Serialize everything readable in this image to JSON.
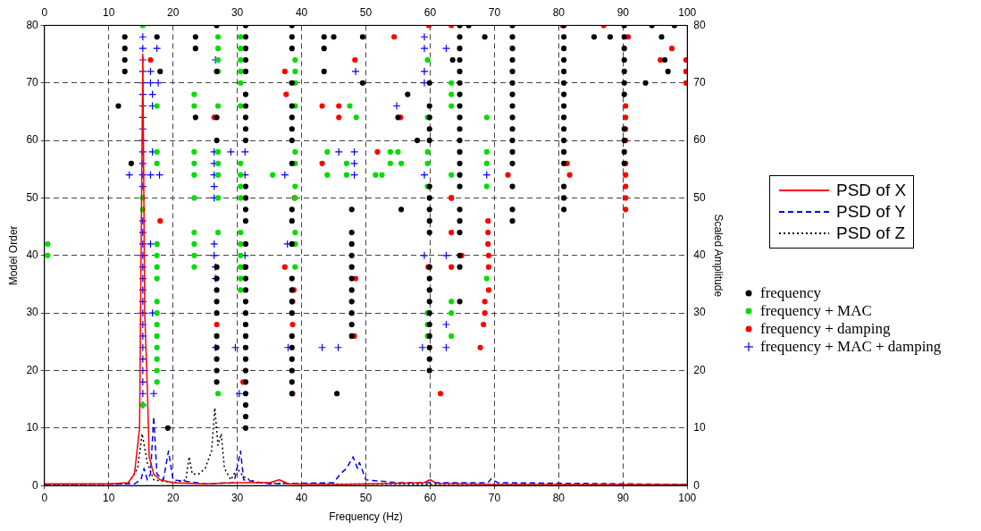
{
  "chart_data": {
    "type": "scatter",
    "xlabel": "Frequency (Hz)",
    "ylabel": "Model Order",
    "y2label": "Scaled Amplitude",
    "xlim": [
      0,
      100
    ],
    "xticks": [
      0,
      10,
      20,
      30,
      40,
      50,
      60,
      70,
      80,
      90,
      100
    ],
    "x2lim": [
      0,
      100
    ],
    "x2ticks": [
      0,
      10,
      20,
      30,
      40,
      50,
      60,
      70,
      80,
      90,
      100
    ],
    "ylim": [
      0,
      80
    ],
    "yticks": [
      0,
      10,
      20,
      30,
      40,
      50,
      60,
      70,
      80
    ],
    "y2lim": [
      0,
      80
    ],
    "y2ticks": [
      0,
      10,
      20,
      30,
      40,
      50,
      60,
      70,
      80
    ],
    "grid": true,
    "legend": "right",
    "series": [
      {
        "name": "PSD of X",
        "type": "line",
        "axis": "y2",
        "color": "#ff0000",
        "line_style": "solid",
        "marker": "none",
        "x": [
          0,
          10,
          13,
          14,
          14.8,
          15.3,
          15.6,
          16,
          16.3,
          17,
          18,
          20,
          25,
          30,
          35,
          36.5,
          38,
          45,
          59,
          60,
          61,
          70,
          80,
          100
        ],
        "values": [
          0.3,
          0.3,
          0.5,
          2,
          10,
          75,
          30,
          17,
          5,
          2,
          1,
          0.5,
          0.3,
          0.5,
          0.5,
          1,
          0.3,
          0.2,
          0.5,
          1,
          0.4,
          0.2,
          0.2,
          0.2
        ]
      },
      {
        "name": "PSD of Y",
        "type": "line",
        "axis": "y2",
        "color": "#0000ff",
        "line_style": "dashed",
        "marker": "none",
        "x": [
          0,
          14,
          15,
          15.5,
          16,
          16.5,
          17,
          17.5,
          18.5,
          19.3,
          20,
          25,
          29.5,
          30.5,
          31,
          35,
          45,
          46,
          47,
          48,
          48.7,
          49,
          50,
          55,
          69,
          69.5,
          70.5,
          81,
          100
        ],
        "values": [
          0.2,
          0.3,
          1,
          3,
          1,
          2,
          12,
          2,
          1,
          6,
          1,
          0.3,
          0.5,
          6,
          1,
          0.3,
          0.5,
          2,
          3,
          5,
          3,
          4,
          1,
          0.5,
          0.5,
          1.2,
          0.5,
          0.4,
          0.2
        ]
      },
      {
        "name": "PSD of Z",
        "type": "line",
        "axis": "y2",
        "color": "#000000",
        "line_style": "dotted",
        "marker": "none",
        "x": [
          0,
          13,
          14.5,
          15.2,
          16,
          17,
          20,
          22,
          22.5,
          23,
          24,
          25,
          26,
          26.5,
          27,
          27.5,
          28,
          29,
          30,
          31,
          33,
          40,
          100
        ],
        "values": [
          0.1,
          0.3,
          3,
          9,
          4,
          1,
          0.5,
          1,
          5,
          2,
          2,
          3,
          6,
          13.5,
          7,
          9,
          3,
          1,
          3,
          1.5,
          0.5,
          0.3,
          0.1
        ]
      },
      {
        "name": "frequency",
        "type": "scatter",
        "color": "#000000",
        "marker": "circle",
        "x": [
          31.3,
          31.3,
          31.3,
          31.3,
          31.3,
          31.3,
          31.3,
          31.3,
          31.3,
          31.3,
          31.3,
          31.3,
          31.3,
          31.3,
          31.3,
          31.3,
          31.3,
          31.3,
          31.3,
          31.3,
          31.3,
          31.3,
          31.3,
          31.3,
          31.3,
          31.3,
          31.3,
          31.3,
          31.3,
          31.3,
          38.5,
          38.5,
          38.5,
          38.5,
          38.5,
          38.5,
          38.5,
          38.5,
          38.5,
          38.5,
          38.5,
          38.5,
          38.5,
          38.5,
          38.5,
          38.5,
          38.5,
          38.5,
          38.5,
          38.5,
          38.5,
          38.5,
          59.9,
          59.9,
          59.9,
          59.9,
          59.9,
          59.9,
          59.9,
          59.9,
          59.9,
          59.9,
          59.9,
          59.9,
          59.9,
          59.9,
          59.9,
          59.9,
          59.9,
          59.9,
          59.9,
          59.9,
          64.6,
          64.6,
          64.6,
          64.6,
          64.6,
          64.6,
          64.6,
          64.6,
          64.6,
          64.6,
          64.6,
          64.6,
          64.6,
          64.6,
          64.6,
          64.6,
          64.6,
          64.6,
          64.6,
          64.6,
          64.6,
          72.8,
          72.8,
          72.8,
          72.8,
          72.8,
          72.8,
          72.8,
          72.8,
          72.8,
          72.8,
          72.8,
          72.8,
          72.8,
          72.8,
          72.8,
          72.8,
          80.8,
          80.8,
          80.8,
          80.8,
          80.8,
          80.8,
          80.8,
          80.8,
          80.8,
          80.8,
          80.8,
          80.8,
          80.8,
          80.8,
          80.8,
          80.8,
          90.2,
          90.2,
          90.2,
          90.2,
          90.2,
          90.2,
          90.2,
          90.2,
          90.2,
          90.2,
          90.2,
          26.8,
          26.8,
          26.8,
          26.8,
          26.8,
          26.8,
          26.8,
          26.8,
          26.8,
          26.8,
          26.8,
          26.8,
          26.8,
          26.8,
          47.8,
          47.8,
          47.8,
          47.8,
          47.8,
          47.8,
          47.8,
          47.8,
          47.8,
          47.8,
          47.8,
          12.5,
          12.5,
          12.5,
          12.5,
          11.5,
          13.5,
          19.2,
          17.5,
          18,
          23.5,
          23.5,
          23.5,
          43.5,
          43.5,
          43.5,
          45,
          49.5,
          49.5,
          45.5,
          55.5,
          58,
          55,
          56.5,
          63.5,
          66,
          68.5,
          85.5,
          88,
          94.5,
          96,
          98,
          97,
          96.5,
          93.5
        ],
        "values": [
          10,
          12,
          14,
          16,
          18,
          20,
          22,
          24,
          26,
          28,
          30,
          32,
          34,
          36,
          38,
          42,
          46,
          48,
          50,
          52,
          60,
          62,
          64,
          66,
          68,
          72,
          74,
          76,
          78,
          80,
          16,
          18,
          20,
          22,
          24,
          26,
          30,
          32,
          34,
          36,
          42,
          46,
          48,
          56,
          60,
          62,
          64,
          66,
          70,
          76,
          78,
          80,
          20,
          22,
          24,
          26,
          28,
          30,
          32,
          34,
          36,
          38,
          44,
          46,
          48,
          50,
          52,
          60,
          62,
          64,
          66,
          70,
          32,
          38,
          40,
          44,
          46,
          48,
          52,
          54,
          56,
          58,
          60,
          62,
          64,
          66,
          68,
          70,
          72,
          74,
          76,
          78,
          80,
          46,
          48,
          52,
          56,
          58,
          60,
          62,
          64,
          66,
          68,
          70,
          72,
          74,
          76,
          78,
          80,
          48,
          50,
          52,
          56,
          58,
          60,
          62,
          64,
          66,
          68,
          70,
          72,
          74,
          76,
          78,
          80,
          56,
          58,
          60,
          62,
          68,
          70,
          72,
          74,
          76,
          78,
          80,
          18,
          20,
          22,
          24,
          26,
          30,
          32,
          34,
          36,
          38,
          60,
          64,
          72,
          80,
          26,
          28,
          30,
          32,
          34,
          36,
          38,
          40,
          42,
          44,
          48,
          72,
          74,
          76,
          78,
          66,
          56,
          10,
          78,
          72,
          78,
          76,
          64,
          78,
          76,
          72,
          78,
          78,
          70,
          16,
          48,
          60,
          64,
          68,
          74,
          80,
          78,
          78,
          78,
          80,
          78,
          80,
          72,
          74,
          70
        ]
      },
      {
        "name": "frequency + MAC",
        "type": "scatter",
        "color": "#00dd00",
        "marker": "circle",
        "x": [
          15.3,
          15.3,
          15.3,
          15.3,
          17.5,
          17.5,
          17.5,
          17.5,
          17.5,
          17.5,
          17.5,
          17.5,
          17.5,
          17.5,
          17.5,
          17.5,
          17.5,
          17.5,
          17.5,
          0.5,
          0.5,
          23.3,
          23.3,
          23.3,
          23.3,
          23.3,
          23.3,
          23.3,
          23.3,
          23.3,
          23.3,
          27,
          27,
          27,
          27,
          27,
          27,
          27,
          27,
          27,
          27,
          27,
          30.5,
          30.5,
          30.5,
          30.5,
          30.5,
          30.5,
          30.5,
          30.5,
          30.5,
          30.5,
          30.5,
          30.5,
          30.5,
          30.5,
          30.5,
          30.5,
          39,
          39,
          39,
          39,
          39,
          39,
          39,
          39,
          39,
          39,
          39,
          35.5,
          44,
          44,
          47,
          47,
          47.5,
          48.5,
          51.5,
          53.8,
          53.8,
          55,
          52.5,
          55.5,
          59.6,
          59.6,
          59.6,
          59.6,
          59.6,
          59.6,
          59.6,
          59.6,
          63.3,
          63.3,
          63.3,
          63.3,
          63.3,
          63.3,
          63.3,
          68.8,
          68.8,
          68.8,
          68.8,
          68.8
        ],
        "values": [
          80,
          50,
          48,
          14,
          66,
          58,
          56,
          42,
          40,
          38,
          36,
          32,
          30,
          28,
          26,
          24,
          22,
          20,
          18,
          40,
          42,
          68,
          66,
          58,
          56,
          54,
          50,
          44,
          42,
          40,
          38,
          78,
          76,
          74,
          72,
          66,
          58,
          56,
          54,
          50,
          44,
          16,
          78,
          76,
          74,
          72,
          70,
          66,
          56,
          54,
          52,
          50,
          44,
          42,
          40,
          38,
          36,
          34,
          74,
          72,
          70,
          66,
          58,
          56,
          52,
          50,
          44,
          42,
          38,
          54,
          58,
          54,
          56,
          54,
          66,
          64,
          54,
          56,
          58,
          58,
          54,
          56,
          26,
          28,
          30,
          52,
          56,
          58,
          64,
          74,
          26,
          30,
          32,
          54,
          66,
          68,
          70,
          36,
          52,
          56,
          58,
          64
        ]
      },
      {
        "name": "frequency + damping",
        "type": "scatter",
        "color": "#ff0000",
        "marker": "circle",
        "x": [
          16.5,
          37.4,
          37.6,
          48.3,
          43.2,
          45.8,
          45.8,
          26.4,
          38.9,
          18,
          43.2,
          31.1,
          37.4,
          48.4,
          38.8,
          38.6,
          38.6,
          26.8,
          48.2,
          30.9,
          38.6,
          54.4,
          55.4,
          51.8,
          72.1,
          63.3,
          90.4,
          90.4,
          90.4,
          90.4,
          90.4,
          90.4,
          90.4,
          90.4,
          90.4,
          81.3,
          81.7,
          59.8,
          63.3,
          80.6,
          87,
          90.8,
          97.6,
          95.8,
          99.8,
          99.8,
          99.8,
          64.9,
          69.1,
          59.7,
          63.3,
          69.1,
          69.1,
          68.5,
          68.5,
          68.3,
          67.8,
          61.6,
          69,
          69,
          69,
          63.3,
          63.3
        ],
        "values": [
          74,
          72,
          68,
          74,
          66,
          66,
          64,
          64,
          50,
          46,
          56,
          38,
          38,
          36,
          34,
          32,
          28,
          28,
          26,
          18,
          16,
          78,
          64,
          58,
          54,
          50,
          66,
          64,
          62,
          60,
          56,
          54,
          52,
          50,
          48,
          56,
          54,
          80,
          80,
          80,
          80,
          78,
          76,
          74,
          74,
          72,
          70,
          40,
          40,
          38,
          38,
          38,
          34,
          32,
          30,
          28,
          24,
          16,
          46,
          44,
          42,
          44,
          50
        ]
      },
      {
        "name": "frequency + MAC + damping",
        "type": "scatter",
        "color": "#0000ff",
        "marker": "cross",
        "x": [
          15.3,
          15.3,
          15.3,
          15.3,
          15.3,
          15.3,
          15.3,
          15.3,
          15.3,
          15.3,
          15.3,
          15.3,
          15.3,
          15.3,
          15.3,
          15.3,
          15.3,
          15.3,
          15.3,
          15.3,
          15.3,
          15.3,
          15.3,
          15.3,
          15.3,
          15.3,
          15.3,
          15.3,
          15.3,
          15.3,
          15.3,
          16.5,
          17.5,
          16.5,
          17.7,
          16.8,
          16.8,
          26.6,
          16.8,
          26.4,
          29,
          31.2,
          45.8,
          48.2,
          26.4,
          48.2,
          13.2,
          16.5,
          17.9,
          26.4,
          31.2,
          37.4,
          48.2,
          26.4,
          26.4,
          16.5,
          26.4,
          37.8,
          48.4,
          16.8,
          26.6,
          29.7,
          37.9,
          43.2,
          45.7,
          17,
          30.3,
          26.4,
          31.2,
          26.6,
          26.6,
          59.1,
          59.1,
          62.5,
          59.1,
          59.1,
          54.8,
          59.1,
          68.8,
          59.1,
          62.5,
          62.5,
          58.8,
          62.5
        ],
        "values": [
          14,
          16,
          18,
          20,
          22,
          24,
          26,
          28,
          30,
          32,
          34,
          36,
          38,
          40,
          42,
          44,
          46,
          52,
          54,
          56,
          58,
          60,
          62,
          64,
          66,
          68,
          70,
          72,
          74,
          76,
          78,
          72,
          76,
          70,
          70,
          68,
          66,
          74,
          58,
          58,
          58,
          58,
          58,
          58,
          56,
          56,
          54,
          54,
          54,
          54,
          54,
          54,
          54,
          52,
          50,
          42,
          42,
          42,
          72,
          30,
          24,
          24,
          24,
          24,
          24,
          16,
          16,
          40,
          40,
          38,
          36,
          78,
          76,
          76,
          72,
          70,
          66,
          54,
          54,
          40,
          40,
          28,
          24,
          24
        ]
      }
    ]
  }
}
